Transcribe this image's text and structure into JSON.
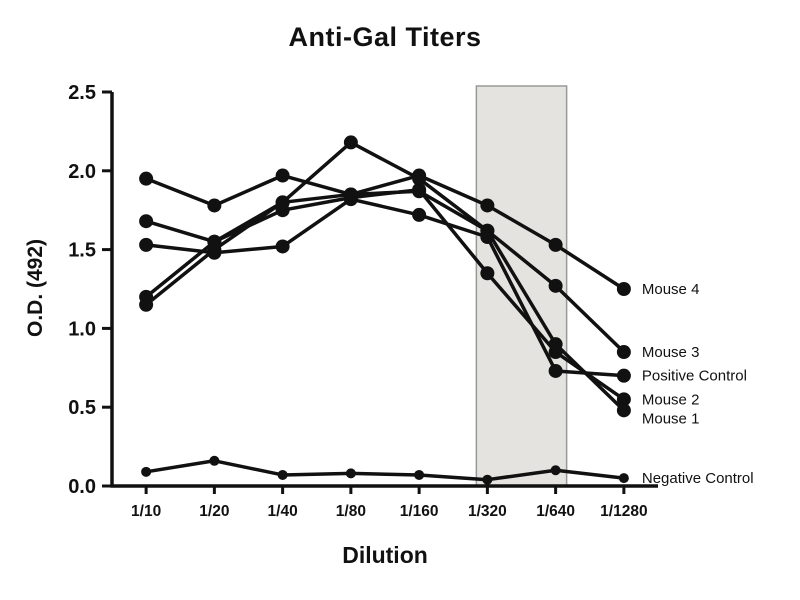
{
  "chart_data": {
    "type": "line",
    "title": "Anti-Gal Titers",
    "xlabel": "Dilution",
    "ylabel": "O.D. (492)",
    "ylim": [
      0,
      2.5
    ],
    "yticks": [
      0,
      0.5,
      1.0,
      1.5,
      2.0,
      2.5
    ],
    "categories": [
      "1/10",
      "1/20",
      "1/40",
      "1/80",
      "1/160",
      "1/320",
      "1/640",
      "1/1280"
    ],
    "series": [
      {
        "name": "Mouse 4",
        "values": [
          1.95,
          1.78,
          1.97,
          1.85,
          1.97,
          1.78,
          1.53,
          1.25
        ],
        "marker_radius": 7
      },
      {
        "name": "Mouse 3",
        "values": [
          1.68,
          1.55,
          1.8,
          2.18,
          1.95,
          1.62,
          1.27,
          0.85
        ],
        "marker_radius": 7
      },
      {
        "name": "Positive Control",
        "values": [
          1.53,
          1.48,
          1.52,
          1.82,
          1.72,
          1.58,
          0.73,
          0.7
        ],
        "marker_radius": 7
      },
      {
        "name": "Mouse 2",
        "values": [
          1.2,
          1.55,
          1.75,
          1.83,
          1.88,
          1.35,
          0.85,
          0.55
        ],
        "marker_radius": 7
      },
      {
        "name": "Mouse 1",
        "values": [
          1.15,
          1.5,
          1.8,
          1.85,
          1.87,
          1.62,
          0.9,
          0.48
        ],
        "marker_radius": 7
      },
      {
        "name": "Negative Control",
        "values": [
          0.09,
          0.16,
          0.07,
          0.08,
          0.07,
          0.04,
          0.1,
          0.05
        ],
        "marker_radius": 5
      }
    ],
    "highlight_band": {
      "from": "1/320",
      "to": "1/640"
    },
    "colors": {
      "line": "#111111",
      "band_fill": "#e4e3df",
      "band_border": "#999999",
      "background": "#ffffff"
    },
    "legend_position": "right-of-line-ends",
    "grid": false
  }
}
